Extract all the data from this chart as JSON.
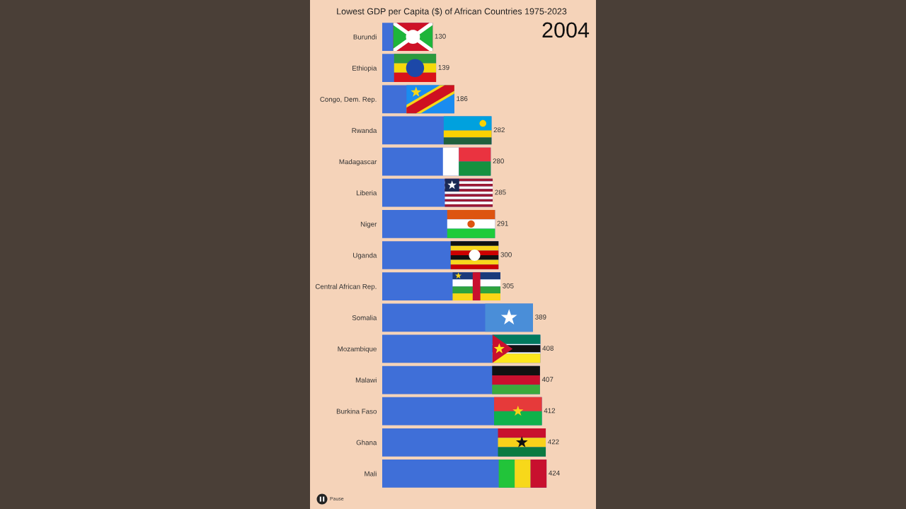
{
  "chart_data": {
    "type": "bar",
    "orientation": "horizontal",
    "title": "Lowest GDP per Capita ($) of African Countries 1975-2023",
    "categories": [
      "Burundi",
      "Ethiopia",
      "Congo, Dem. Rep.",
      "Rwanda",
      "Madagascar",
      "Liberia",
      "Niger",
      "Uganda",
      "Central African Rep.",
      "Somalia",
      "Mozambique",
      "Malawi",
      "Burkina Faso",
      "Ghana",
      "Mali"
    ],
    "values": [
      130,
      139,
      186,
      282,
      280,
      285,
      291,
      300,
      305,
      389,
      408,
      407,
      412,
      422,
      424
    ],
    "color": "#3f6fd8",
    "data_labels": true,
    "tick_labels": "y",
    "grid": false,
    "annotations": [
      "2004",
      "Pause"
    ]
  }
}
